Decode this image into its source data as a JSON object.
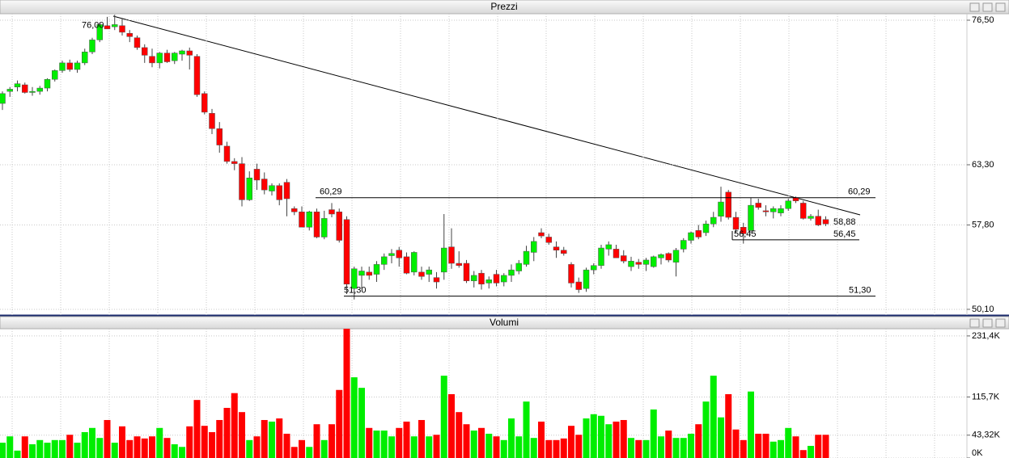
{
  "chart_data": [
    {
      "type": "candlestick",
      "title": "Prezzi",
      "ylim": [
        49.58,
        77.09
      ],
      "yticks": [
        {
          "value": 76.5,
          "label": "76,50"
        },
        {
          "value": 63.3,
          "label": "63,30"
        },
        {
          "value": 57.8,
          "label": "57,80"
        },
        {
          "value": 50.1,
          "label": "50,10"
        }
      ],
      "grid": true,
      "up_color": "#00ee00",
      "down_color": "#ff0000",
      "ohlc": [
        [
          68.9,
          70.0,
          68.3,
          69.8
        ],
        [
          70.0,
          70.4,
          69.5,
          70.2
        ],
        [
          70.4,
          71.0,
          70.0,
          70.7
        ],
        [
          70.6,
          70.8,
          69.8,
          69.9
        ],
        [
          69.9,
          70.4,
          69.6,
          70.0
        ],
        [
          70.0,
          70.5,
          69.7,
          70.3
        ],
        [
          70.3,
          71.2,
          70.0,
          71.1
        ],
        [
          71.1,
          72.0,
          70.9,
          71.9
        ],
        [
          71.9,
          72.8,
          71.7,
          72.6
        ],
        [
          72.6,
          72.9,
          71.8,
          72.0
        ],
        [
          72.0,
          72.8,
          71.7,
          72.6
        ],
        [
          72.6,
          73.9,
          72.4,
          73.6
        ],
        [
          73.6,
          74.9,
          73.4,
          74.7
        ],
        [
          74.7,
          76.3,
          74.5,
          76.1
        ],
        [
          76.0,
          76.8,
          75.7,
          75.7
        ],
        [
          75.9,
          77.0,
          75.6,
          76.1
        ],
        [
          76.0,
          76.6,
          75.1,
          75.4
        ],
        [
          75.3,
          75.6,
          74.5,
          75.0
        ],
        [
          74.9,
          75.1,
          73.8,
          74.0
        ],
        [
          74.0,
          74.3,
          72.6,
          73.3
        ],
        [
          73.2,
          73.9,
          72.2,
          72.6
        ],
        [
          72.6,
          73.6,
          72.1,
          73.5
        ],
        [
          73.5,
          73.8,
          72.6,
          72.7
        ],
        [
          72.8,
          73.6,
          72.5,
          73.5
        ],
        [
          73.4,
          73.8,
          72.8,
          73.7
        ],
        [
          73.7,
          74.0,
          72.0,
          73.3
        ],
        [
          73.2,
          73.4,
          69.5,
          69.7
        ],
        [
          69.8,
          70.0,
          67.9,
          68.1
        ],
        [
          68.0,
          68.4,
          66.1,
          66.6
        ],
        [
          66.6,
          67.2,
          64.4,
          65.1
        ],
        [
          65.0,
          65.4,
          63.4,
          63.6
        ],
        [
          63.6,
          63.9,
          62.8,
          63.4
        ],
        [
          63.4,
          64.0,
          59.5,
          60.1
        ],
        [
          60.1,
          62.7,
          60.0,
          62.1
        ],
        [
          62.9,
          63.4,
          61.0,
          61.9
        ],
        [
          62.0,
          62.6,
          60.6,
          61.0
        ],
        [
          60.9,
          61.6,
          60.5,
          61.4
        ],
        [
          61.4,
          61.6,
          59.6,
          60.1
        ],
        [
          61.7,
          62.0,
          58.6,
          60.2
        ],
        [
          59.3,
          59.5,
          58.7,
          59.0
        ],
        [
          59.0,
          59.5,
          57.6,
          57.6
        ],
        [
          57.6,
          59.1,
          57.3,
          59.0
        ],
        [
          59.0,
          59.3,
          56.6,
          56.7
        ],
        [
          56.7,
          59.1,
          56.5,
          58.4
        ],
        [
          59.2,
          59.8,
          58.5,
          58.8
        ],
        [
          59.0,
          59.3,
          56.2,
          56.4
        ],
        [
          58.3,
          58.6,
          51.5,
          52.4
        ],
        [
          52.0,
          54.0,
          51.0,
          53.8
        ],
        [
          53.2,
          54.0,
          52.0,
          53.6
        ],
        [
          53.5,
          54.0,
          52.8,
          53.2
        ],
        [
          53.3,
          54.5,
          52.6,
          54.2
        ],
        [
          54.2,
          55.2,
          53.7,
          54.9
        ],
        [
          55.0,
          55.6,
          54.3,
          55.2
        ],
        [
          55.5,
          55.8,
          54.0,
          54.8
        ],
        [
          54.9,
          55.3,
          53.3,
          53.4
        ],
        [
          53.5,
          55.4,
          53.2,
          55.3
        ],
        [
          53.5,
          54.0,
          52.8,
          53.1
        ],
        [
          53.3,
          54.0,
          52.6,
          53.7
        ],
        [
          53.0,
          53.5,
          52.0,
          52.6
        ],
        [
          53.5,
          58.8,
          52.8,
          55.7
        ],
        [
          55.8,
          57.5,
          53.8,
          54.3
        ],
        [
          54.3,
          55.4,
          53.9,
          54.1
        ],
        [
          54.3,
          54.6,
          52.5,
          52.7
        ],
        [
          52.7,
          53.6,
          52.1,
          53.2
        ],
        [
          53.4,
          53.7,
          51.9,
          52.4
        ],
        [
          52.5,
          53.1,
          52.0,
          52.8
        ],
        [
          53.3,
          53.7,
          52.2,
          52.5
        ],
        [
          52.6,
          53.4,
          52.2,
          53.2
        ],
        [
          53.2,
          54.2,
          52.6,
          53.7
        ],
        [
          53.6,
          54.6,
          53.3,
          54.3
        ],
        [
          54.2,
          55.9,
          54.0,
          55.4
        ],
        [
          55.3,
          56.7,
          54.5,
          56.3
        ],
        [
          57.1,
          57.5,
          56.6,
          56.8
        ],
        [
          56.7,
          57.0,
          56.0,
          56.2
        ],
        [
          55.8,
          56.3,
          54.8,
          55.5
        ],
        [
          55.5,
          55.8,
          55.0,
          55.2
        ],
        [
          54.2,
          54.4,
          52.1,
          52.5
        ],
        [
          52.6,
          53.0,
          51.6,
          51.9
        ],
        [
          52.0,
          53.9,
          51.7,
          53.7
        ],
        [
          53.7,
          54.3,
          53.3,
          54.1
        ],
        [
          54.1,
          56.0,
          53.8,
          55.7
        ],
        [
          55.6,
          56.3,
          55.0,
          56.0
        ],
        [
          55.6,
          56.0,
          54.8,
          54.8
        ],
        [
          55.0,
          55.5,
          54.3,
          54.5
        ],
        [
          54.0,
          54.9,
          53.6,
          54.5
        ],
        [
          54.4,
          54.7,
          53.8,
          54.2
        ],
        [
          54.2,
          54.8,
          53.6,
          54.6
        ],
        [
          54.0,
          55.0,
          53.9,
          54.9
        ],
        [
          54.8,
          55.2,
          54.2,
          55.1
        ],
        [
          55.2,
          55.3,
          54.4,
          54.6
        ],
        [
          54.4,
          55.7,
          53.1,
          55.5
        ],
        [
          55.6,
          56.6,
          55.3,
          56.4
        ],
        [
          56.4,
          57.2,
          56.1,
          57.1
        ],
        [
          57.3,
          57.8,
          56.5,
          56.7
        ],
        [
          57.1,
          58.2,
          56.8,
          57.9
        ],
        [
          57.9,
          59.0,
          57.6,
          58.5
        ],
        [
          58.6,
          61.3,
          58.1,
          59.9
        ],
        [
          60.8,
          61.0,
          58.3,
          58.5
        ],
        [
          58.5,
          59.0,
          57.1,
          57.4
        ],
        [
          57.6,
          58.0,
          56.1,
          57.0
        ],
        [
          57.3,
          60.3,
          57.0,
          59.6
        ],
        [
          59.8,
          60.2,
          59.2,
          59.4
        ],
        [
          59.1,
          59.6,
          58.6,
          59.0
        ],
        [
          59.0,
          59.5,
          58.4,
          59.3
        ],
        [
          58.9,
          59.6,
          58.6,
          59.3
        ],
        [
          59.3,
          60.2,
          59.1,
          60.0
        ],
        [
          60.3,
          60.4,
          59.8,
          60.0
        ],
        [
          59.8,
          60.0,
          58.3,
          58.4
        ],
        [
          58.4,
          58.8,
          58.2,
          58.6
        ],
        [
          58.6,
          59.2,
          57.7,
          57.8
        ],
        [
          58.3,
          58.6,
          57.7,
          57.9
        ]
      ],
      "levels": [
        {
          "value": 60.29,
          "label": "60,29"
        },
        {
          "value": 56.45,
          "label": "56,45"
        },
        {
          "value": 51.3,
          "label": "51,30"
        }
      ],
      "annotations": [
        {
          "value": 76.0,
          "label": "76,00"
        },
        {
          "value": 58.88,
          "label": "58,88"
        }
      ]
    },
    {
      "type": "volume",
      "title": "Volumi",
      "ylim": [
        0,
        245
      ],
      "yticks": [
        {
          "value": 231.4,
          "label": "231,4K"
        },
        {
          "value": 115.7,
          "label": "115,7K"
        },
        {
          "value": 43.32,
          "label": "43,32K"
        },
        {
          "value": 0,
          "label": "0K"
        }
      ],
      "grid": true,
      "values": [
        29,
        41,
        14,
        41,
        26,
        34,
        29,
        34,
        34,
        44,
        29,
        49,
        57,
        38,
        72,
        29,
        60,
        34,
        41,
        37,
        41,
        57,
        38,
        26,
        21,
        60,
        110,
        61,
        49,
        72,
        95,
        123,
        87,
        34,
        41,
        72,
        69,
        75,
        46,
        21,
        34,
        21,
        64,
        34,
        64,
        129,
        245,
        153,
        133,
        57,
        52,
        52,
        41,
        57,
        69,
        41,
        72,
        41,
        44,
        156,
        121,
        87,
        64,
        52,
        57,
        46,
        41,
        34,
        75,
        41,
        107,
        38,
        69,
        34,
        34,
        37,
        61,
        44,
        75,
        83,
        80,
        64,
        69,
        72,
        38,
        34,
        34,
        92,
        41,
        52,
        38,
        38,
        46,
        64,
        107,
        156,
        77,
        121,
        54,
        34,
        126,
        46,
        46,
        31,
        34,
        57,
        41,
        15,
        23,
        44,
        44
      ]
    }
  ]
}
